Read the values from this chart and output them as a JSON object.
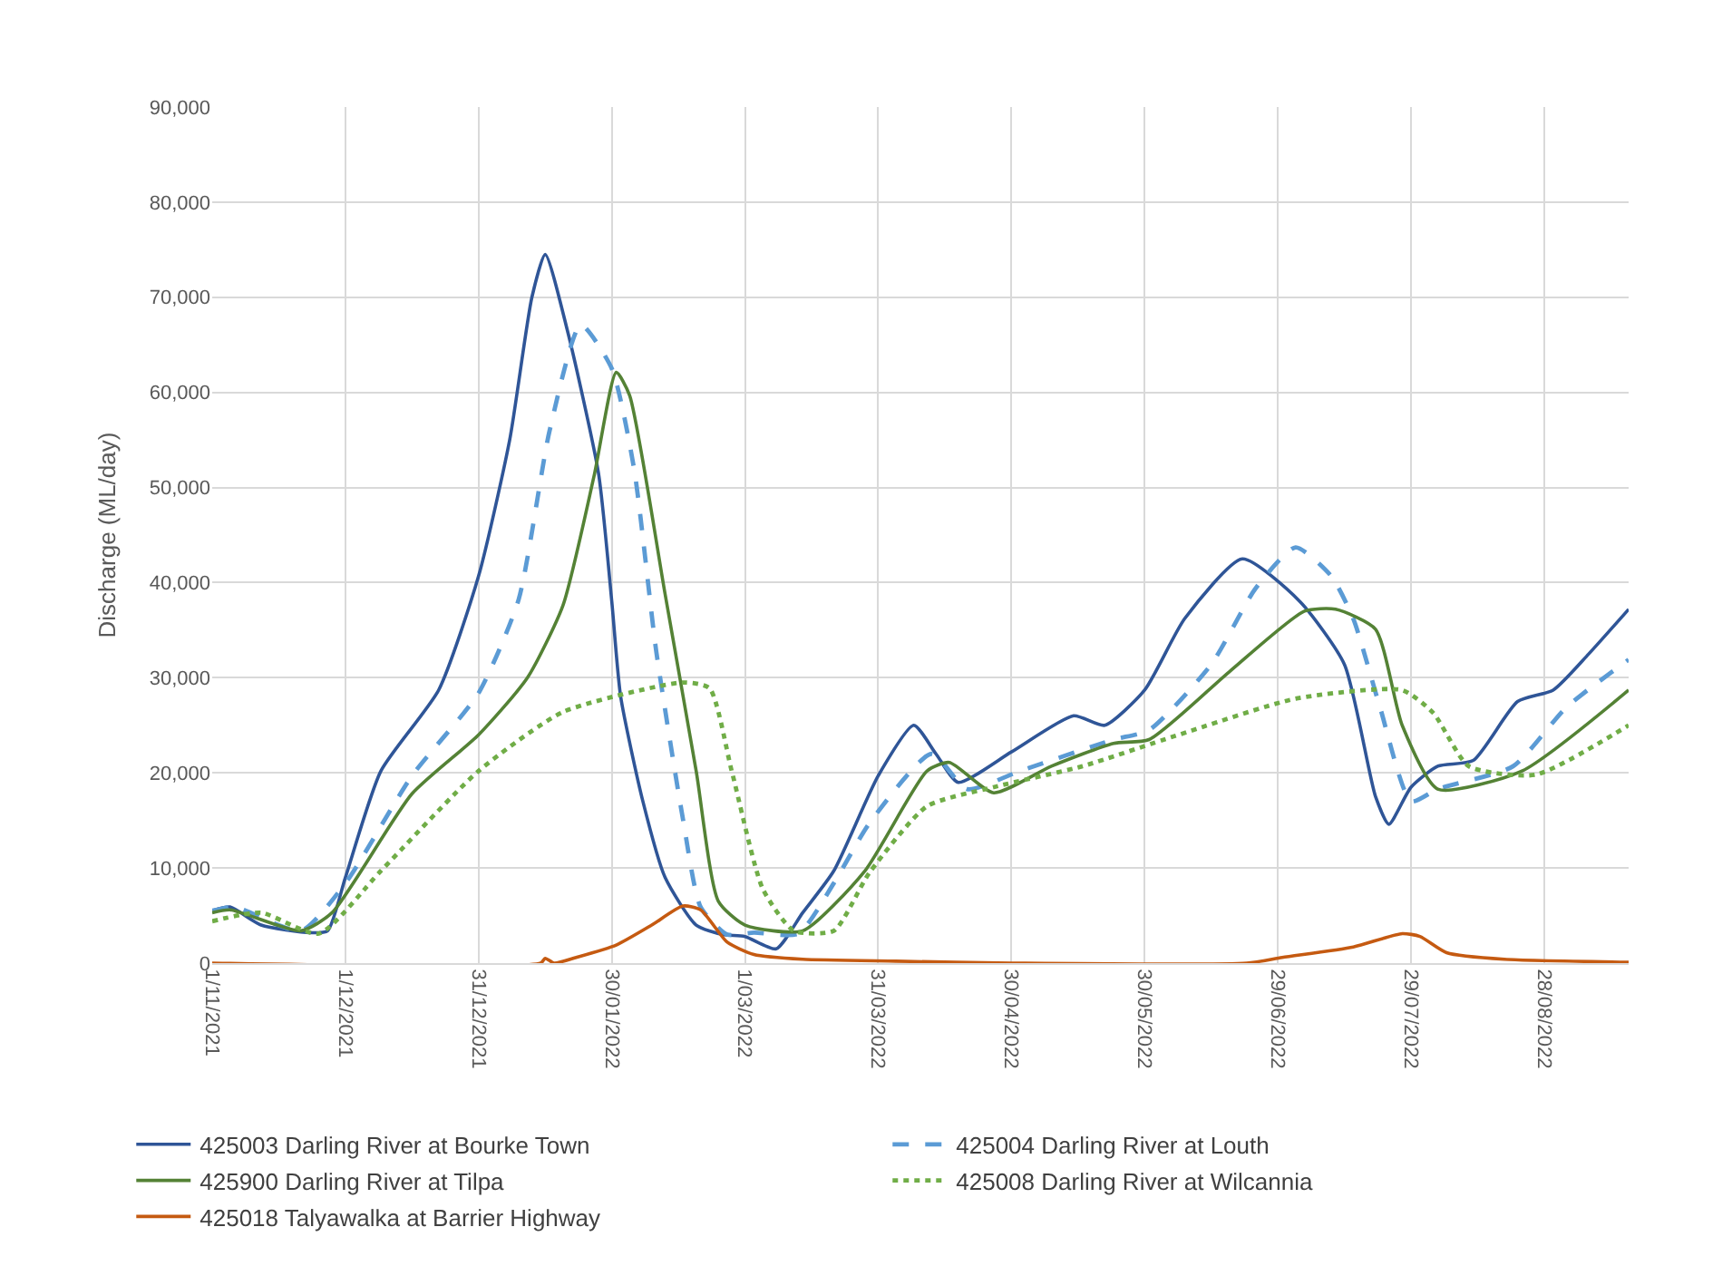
{
  "chart_data": {
    "type": "line",
    "ylabel": "Discharge (ML/day)",
    "xlim": [
      "2021-11-01",
      "2022-09-16"
    ],
    "xticks": [
      {
        "value": "2021-11-01",
        "label": "1/11/2021"
      },
      {
        "value": "2021-12-01",
        "label": "1/12/2021"
      },
      {
        "value": "2021-12-31",
        "label": "31/12/2021"
      },
      {
        "value": "2022-01-30",
        "label": "30/01/2022"
      },
      {
        "value": "2022-03-01",
        "label": "1/03/2022"
      },
      {
        "value": "2022-03-31",
        "label": "31/03/2022"
      },
      {
        "value": "2022-04-30",
        "label": "30/04/2022"
      },
      {
        "value": "2022-05-30",
        "label": "30/05/2022"
      },
      {
        "value": "2022-06-29",
        "label": "29/06/2022"
      },
      {
        "value": "2022-07-29",
        "label": "29/07/2022"
      },
      {
        "value": "2022-08-28",
        "label": "28/08/2022"
      }
    ],
    "ylim": [
      0,
      90000
    ],
    "yticks": [
      0,
      {
        "value": 10000,
        "label": "10,000"
      },
      {
        "value": 20000,
        "label": "20,000"
      },
      {
        "value": 30000,
        "label": "30,000"
      },
      {
        "value": 40000,
        "label": "40,000"
      },
      {
        "value": 50000,
        "label": "50,000"
      },
      {
        "value": 60000,
        "label": "60,000"
      },
      {
        "value": 70000,
        "label": "70,000"
      },
      {
        "value": 80000,
        "label": "80,000"
      },
      {
        "value": 90000,
        "label": "90,000"
      }
    ],
    "grid": true,
    "legend": "bottom",
    "marker": "none",
    "series": [
      {
        "name": "425003 Darling River at Bourke Town",
        "color": "#2f5597",
        "line_style": "solid",
        "x": [
          "2021-11-01",
          "2021-11-05",
          "2021-11-12",
          "2021-11-23",
          "2021-11-27",
          "2021-12-01",
          "2021-12-09",
          "2021-12-22",
          "2021-12-31",
          "2022-01-07",
          "2022-01-12",
          "2022-01-15",
          "2022-01-20",
          "2022-01-27",
          "2022-01-30",
          "2022-02-01",
          "2022-02-06",
          "2022-02-11",
          "2022-02-18",
          "2022-02-24",
          "2022-03-01",
          "2022-03-08",
          "2022-03-14",
          "2022-03-21",
          "2022-03-31",
          "2022-04-08",
          "2022-04-13",
          "2022-04-18",
          "2022-04-30",
          "2022-05-14",
          "2022-05-21",
          "2022-05-30",
          "2022-06-08",
          "2022-06-21",
          "2022-07-04",
          "2022-07-14",
          "2022-07-21",
          "2022-07-24",
          "2022-07-29",
          "2022-08-04",
          "2022-08-12",
          "2022-08-22",
          "2022-08-30",
          "2022-09-07",
          "2022-09-16"
        ],
        "values": [
          5500,
          5900,
          4000,
          3200,
          3400,
          9000,
          20200,
          28700,
          40700,
          55000,
          70000,
          74500,
          66500,
          51500,
          38000,
          28000,
          17000,
          9000,
          4000,
          3000,
          2800,
          1500,
          5300,
          9700,
          19700,
          25000,
          22000,
          19000,
          22200,
          26000,
          25000,
          28700,
          36200,
          42500,
          38000,
          31400,
          17500,
          14600,
          18500,
          20700,
          21300,
          27500,
          28700,
          32500,
          37200
        ]
      },
      {
        "name": "425004 Darling River at Louth",
        "color": "#5b9bd5",
        "line_style": "dashed",
        "x": [
          "2021-11-01",
          "2021-11-06",
          "2021-11-21",
          "2021-12-01",
          "2021-12-16",
          "2021-12-31",
          "2022-01-09",
          "2022-01-16",
          "2022-01-23",
          "2022-01-30",
          "2022-02-04",
          "2022-02-09",
          "2022-02-15",
          "2022-02-19",
          "2022-02-25",
          "2022-03-03",
          "2022-03-13",
          "2022-03-21",
          "2022-03-29",
          "2022-04-12",
          "2022-04-20",
          "2022-05-02",
          "2022-05-23",
          "2022-05-31",
          "2022-06-14",
          "2022-06-24",
          "2022-07-03",
          "2022-07-11",
          "2022-07-16",
          "2022-07-22",
          "2022-07-29",
          "2022-08-04",
          "2022-08-21",
          "2022-09-02",
          "2022-09-16"
        ],
        "values": [
          5500,
          5900,
          3400,
          8400,
          19700,
          28400,
          38200,
          56000,
          67100,
          62500,
          52000,
          32800,
          15200,
          5900,
          3000,
          3200,
          3100,
          8400,
          14700,
          22000,
          18300,
          20200,
          23500,
          24500,
          31400,
          39400,
          43700,
          40700,
          36200,
          26900,
          17000,
          18300,
          20700,
          26900,
          31900
        ]
      },
      {
        "name": "425900 Darling River at Tilpa",
        "color": "#548235",
        "line_style": "solid",
        "x": [
          "2021-11-01",
          "2021-11-05",
          "2021-11-21",
          "2021-11-28",
          "2021-12-16",
          "2021-12-31",
          "2022-01-11",
          "2022-01-19",
          "2022-01-26",
          "2022-01-31",
          "2022-02-03",
          "2022-02-11",
          "2022-02-18",
          "2022-02-23",
          "2022-03-01",
          "2022-03-14",
          "2022-03-28",
          "2022-04-11",
          "2022-04-16",
          "2022-04-26",
          "2022-05-09",
          "2022-05-23",
          "2022-05-31",
          "2022-06-18",
          "2022-07-05",
          "2022-07-12",
          "2022-07-21",
          "2022-07-27",
          "2022-08-04",
          "2022-08-23",
          "2022-09-16"
        ],
        "values": [
          5300,
          5600,
          3400,
          5300,
          17800,
          24000,
          30000,
          37600,
          51200,
          62100,
          59700,
          38800,
          20200,
          6500,
          4000,
          3400,
          9700,
          20200,
          21100,
          17900,
          20700,
          23100,
          23500,
          30600,
          37000,
          37200,
          35100,
          25000,
          18300,
          20200,
          28700
        ]
      },
      {
        "name": "425008 Darling River at Wilcannia",
        "color": "#70ad47",
        "line_style": "dotted",
        "x": [
          "2021-11-01",
          "2021-11-12",
          "2021-11-25",
          "2021-12-09",
          "2021-12-31",
          "2022-01-19",
          "2022-02-15",
          "2022-02-21",
          "2022-02-26",
          "2022-03-05",
          "2022-03-12",
          "2022-03-21",
          "2022-03-29",
          "2022-04-11",
          "2022-04-26",
          "2022-05-16",
          "2022-06-06",
          "2022-07-03",
          "2022-07-27",
          "2022-08-03",
          "2022-08-11",
          "2022-08-26",
          "2022-09-16"
        ],
        "values": [
          4400,
          5300,
          3100,
          9700,
          20200,
          26400,
          29500,
          28900,
          20200,
          7800,
          3400,
          3400,
          9500,
          16500,
          18500,
          20700,
          23900,
          27800,
          28700,
          26300,
          20700,
          19800,
          25000
        ]
      },
      {
        "name": "425018 Talyawalka at Barrier Highway",
        "color": "#c55a11",
        "line_style": "solid",
        "x": [
          "2021-11-01",
          "2022-01-14",
          "2022-01-15",
          "2022-01-17",
          "2022-01-22",
          "2022-01-31",
          "2022-02-08",
          "2022-02-15",
          "2022-02-19",
          "2022-02-25",
          "2022-03-03",
          "2022-03-14",
          "2022-04-04",
          "2022-04-30",
          "2022-06-22",
          "2022-06-30",
          "2022-07-16",
          "2022-07-27",
          "2022-07-31",
          "2022-08-06",
          "2022-08-19",
          "2022-09-16"
        ],
        "values": [
          0,
          0,
          500,
          0,
          600,
          1900,
          4000,
          6000,
          5600,
          2200,
          900,
          400,
          200,
          0,
          0,
          600,
          1700,
          3100,
          2800,
          1100,
          400,
          100
        ]
      }
    ]
  }
}
